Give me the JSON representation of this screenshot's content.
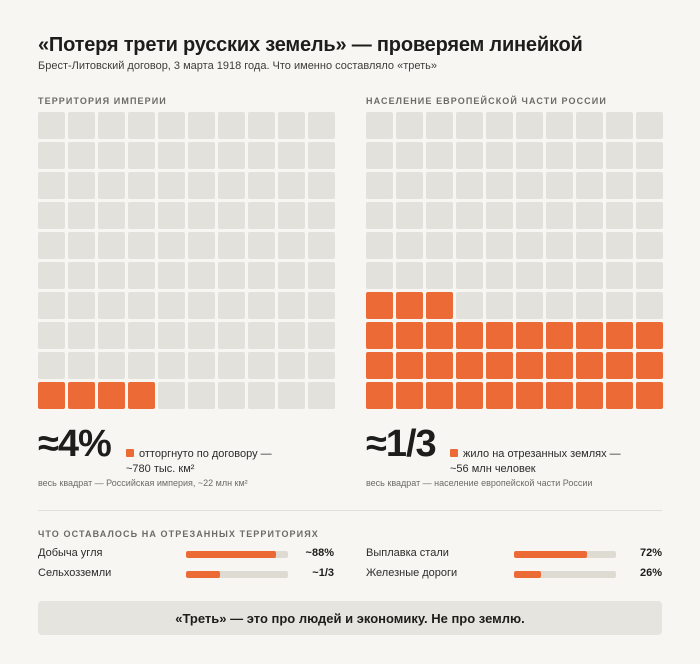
{
  "title": "«Потеря трети русских земель» — проверяем линейкой",
  "subtitle": "Брест-Литовский договор, 3 марта 1918 года. Что именно составляло «треть»",
  "colors": {
    "accent": "#ec6a36",
    "empty": "#e3e1dc"
  },
  "left": {
    "label": "ТЕРРИТОРИЯ ИМПЕРИИ",
    "big": "≈4%",
    "note": "отторгнуто по договору — ~780 тыс. км²",
    "caption": "весь квадрат — Российская империя, ~22 млн км²"
  },
  "right": {
    "label": "НАСЕЛЕНИЕ ЕВРОПЕЙСКОЙ ЧАСТИ РОССИИ",
    "big": "≈1/3",
    "note": "жило на отрезанных землях — ~56 млн человек",
    "caption": "весь квадрат — население европейской части России"
  },
  "bars": {
    "label": "ЧТО ОСТАВАЛОСЬ НА ОТРЕЗАННЫХ ТЕРРИТОРИЯХ",
    "items": [
      {
        "label": "Добыча угля",
        "value_text": "~88%"
      },
      {
        "label": "Сельхозземли",
        "value_text": "~1/3"
      },
      {
        "label": "Выплавка стали",
        "value_text": "72%"
      },
      {
        "label": "Железные дороги",
        "value_text": "26%"
      }
    ]
  },
  "banner": "«Треть» — это про людей и экономику. Не про землю.",
  "chart_data": [
    {
      "type": "waffle",
      "title": "ТЕРРИТОРИЯ ИМПЕРИИ",
      "total_cells": 100,
      "filled_cells": 4,
      "value_text": "≈4%"
    },
    {
      "type": "waffle",
      "title": "НАСЕЛЕНИЕ ЕВРОПЕЙСКОЙ ЧАСТИ РОССИИ",
      "total_cells": 100,
      "filled_cells": 33,
      "value_text": "≈1/3"
    },
    {
      "type": "bar",
      "title": "ЧТО ОСТАВАЛОСЬ НА ОТРЕЗАННЫХ ТЕРРИТОРИЯХ",
      "categories": [
        "Добыча угля",
        "Сельхозземли",
        "Выплавка стали",
        "Железные дороги"
      ],
      "values": [
        88,
        33,
        72,
        26
      ],
      "ylim": [
        0,
        100
      ]
    }
  ]
}
